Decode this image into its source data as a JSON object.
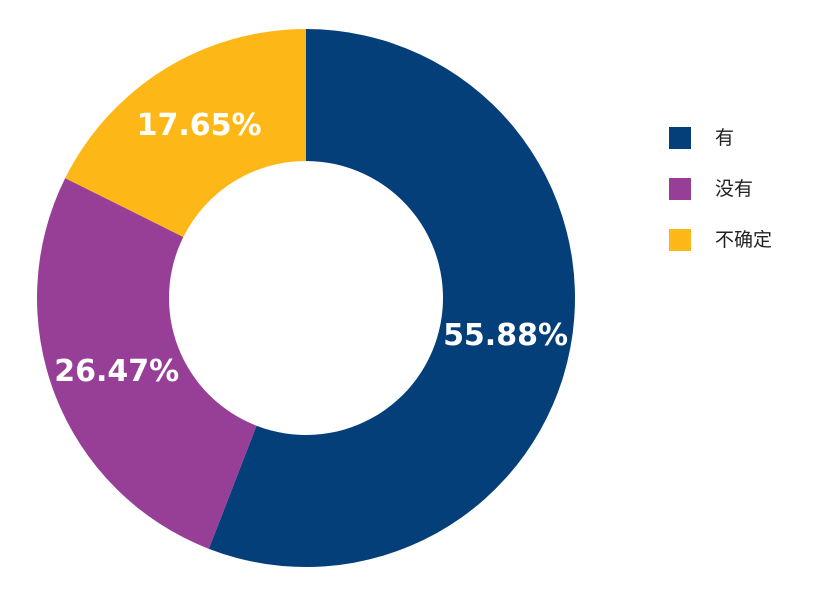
{
  "chart_data": {
    "type": "pie",
    "categories": [
      "有",
      "没有",
      "不确定"
    ],
    "values": [
      55.88,
      26.47,
      17.65
    ],
    "labels": [
      "55.88%",
      "26.47%",
      "17.65%"
    ],
    "colors": [
      "#053f79",
      "#973f96",
      "#fdb817"
    ],
    "legend": "right",
    "donut": true
  }
}
